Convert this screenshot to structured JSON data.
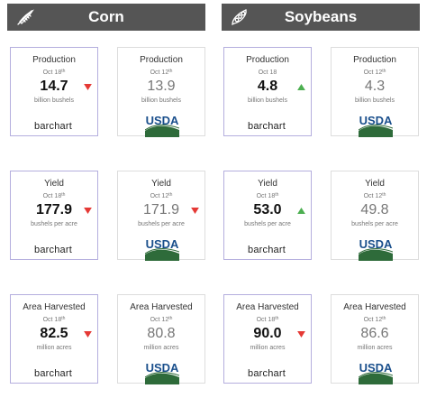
{
  "sections": {
    "corn": {
      "title": "Corn",
      "icon": "corn-icon"
    },
    "soybeans": {
      "title": "Soybeans",
      "icon": "soybean-icon"
    }
  },
  "colors": {
    "header_bg": "#555555",
    "arrow_up": "#4caf50",
    "arrow_down": "#e53935",
    "usda_blue": "#1a4f8c",
    "usda_green": "#2e6b3a",
    "barchart_border": "#b4aede"
  },
  "brands": {
    "barchart": "barchart",
    "usda": "USDA"
  },
  "cards": {
    "corn_production_barchart": {
      "metric": "Production",
      "date": "Oct 18",
      "date_sup": "th",
      "value": "14.7",
      "unit": "billion bushels",
      "arrow": "down"
    },
    "corn_production_usda": {
      "metric": "Production",
      "date": "Oct 12",
      "date_sup": "th",
      "value": "13.9",
      "unit": "billion bushels",
      "arrow": ""
    },
    "soy_production_barchart": {
      "metric": "Production",
      "date": "Oct 18",
      "date_sup": "",
      "value": "4.8",
      "unit": "billion bushels",
      "arrow": "up"
    },
    "soy_production_usda": {
      "metric": "Production",
      "date": "Oct 12",
      "date_sup": "th",
      "value": "4.3",
      "unit": "billion bushels",
      "arrow": ""
    },
    "corn_yield_barchart": {
      "metric": "Yield",
      "date": "Oct 18",
      "date_sup": "th",
      "value": "177.9",
      "unit": "bushels per acre",
      "arrow": "down"
    },
    "corn_yield_usda": {
      "metric": "Yield",
      "date": "Oct 12",
      "date_sup": "th",
      "value": "171.9",
      "unit": "bushels per acre",
      "arrow": ""
    },
    "soy_yield_barchart": {
      "metric": "Yield",
      "date": "Oct 18",
      "date_sup": "th",
      "value": "53.0",
      "unit": "bushels per acre",
      "arrow": "up"
    },
    "soy_yield_usda": {
      "metric": "Yield",
      "date": "Oct 12",
      "date_sup": "th",
      "value": "49.8",
      "unit": "bushels per acre",
      "arrow": ""
    },
    "corn_area_barchart": {
      "metric": "Area Harvested",
      "date": "Oct 18",
      "date_sup": "th",
      "value": "82.5",
      "unit": "million acres",
      "arrow": "down"
    },
    "corn_area_usda": {
      "metric": "Area Harvested",
      "date": "Oct 12",
      "date_sup": "th",
      "value": "80.8",
      "unit": "million acres",
      "arrow": ""
    },
    "soy_area_barchart": {
      "metric": "Area Harvested",
      "date": "Oct 18",
      "date_sup": "th",
      "value": "90.0",
      "unit": "million acres",
      "arrow": "down"
    },
    "soy_area_usda": {
      "metric": "Area Harvested",
      "date": "Oct 12",
      "date_sup": "th",
      "value": "86.6",
      "unit": "million acres",
      "arrow": ""
    }
  }
}
